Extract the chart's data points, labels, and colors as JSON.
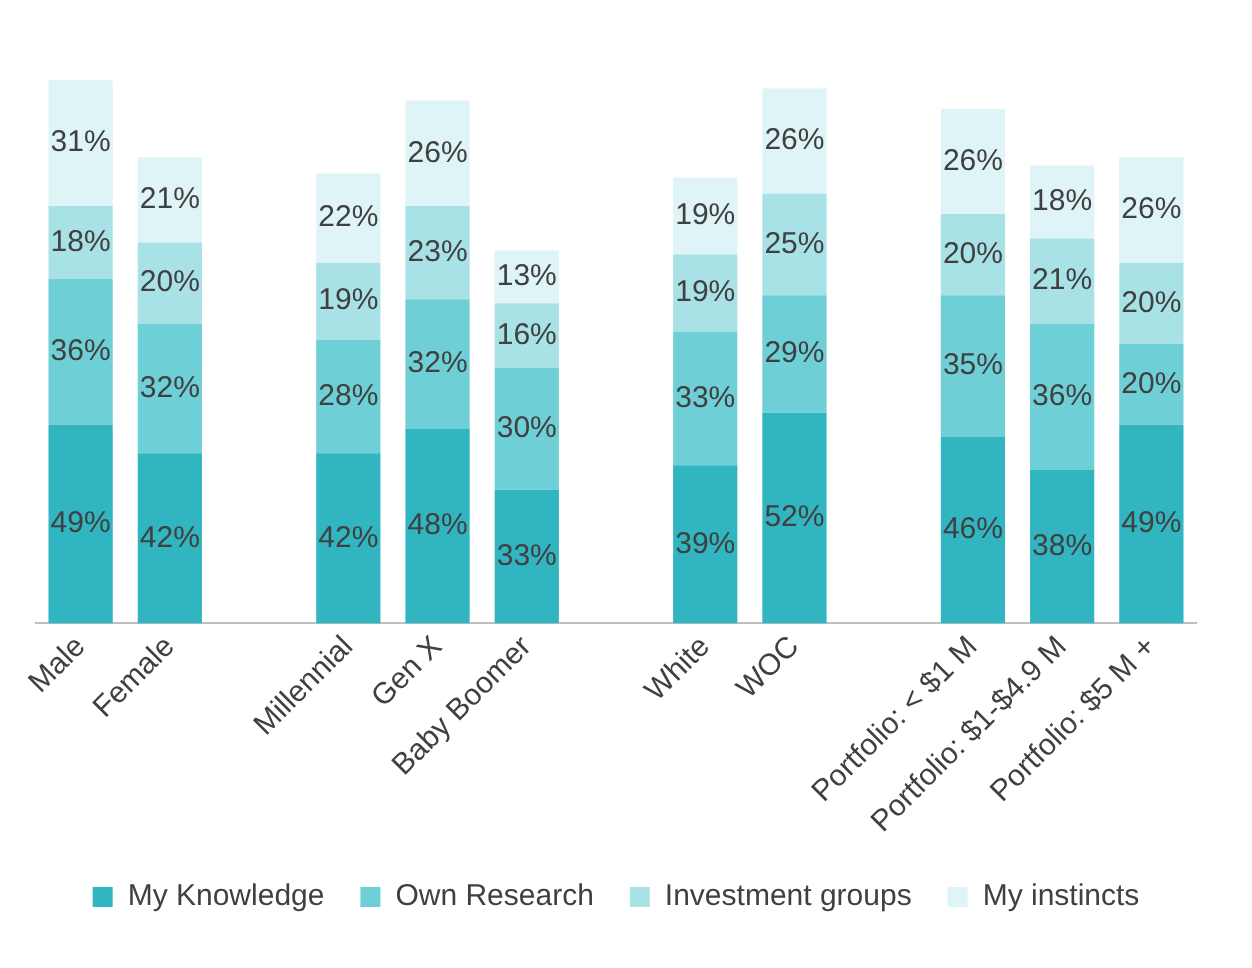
{
  "chart_data": {
    "type": "bar",
    "stacked": true,
    "legend": "bottom",
    "grid": false,
    "categories": [
      "Male",
      "Female",
      null,
      "Millennial",
      "Gen X",
      "Baby Boomer",
      null,
      "White",
      "WOC",
      null,
      "Portfolio: < $1 M",
      "Portfolio: $1-$4.9 M",
      "Portfolio: $5 M +"
    ],
    "series": [
      {
        "name": "My Knowledge",
        "color": "#30b5c1",
        "values": [
          49,
          42,
          null,
          42,
          48,
          33,
          null,
          39,
          52,
          null,
          46,
          38,
          49
        ],
        "value_labels": [
          "49%",
          "42%",
          null,
          "42%",
          "48%",
          "33%",
          null,
          "39%",
          "52%",
          null,
          "46%",
          "38%",
          "49%"
        ]
      },
      {
        "name": "Own Research",
        "color": "#6fcfd7",
        "values": [
          36,
          32,
          null,
          28,
          32,
          30,
          null,
          33,
          29,
          null,
          35,
          36,
          20
        ],
        "value_labels": [
          "36%",
          "32%",
          null,
          "28%",
          "32%",
          "30%",
          null,
          "33%",
          "29%",
          null,
          "35%",
          "36%",
          "20%"
        ]
      },
      {
        "name": "Investment groups",
        "color": "#a8e2e7",
        "values": [
          18,
          20,
          null,
          19,
          23,
          16,
          null,
          19,
          25,
          null,
          20,
          21,
          20
        ],
        "value_labels": [
          "18%",
          "20%",
          null,
          "19%",
          "23%",
          "16%",
          null,
          "19%",
          "25%",
          null,
          "20%",
          "21%",
          "20%"
        ]
      },
      {
        "name": "My instincts",
        "color": "#dff4f6",
        "values": [
          31,
          21,
          null,
          22,
          26,
          13,
          null,
          19,
          26,
          null,
          26,
          18,
          26
        ],
        "value_labels": [
          "31%",
          "21%",
          null,
          "22%",
          "26%",
          "13%",
          null,
          "19%",
          "26%",
          null,
          "26%",
          "18%",
          "26%"
        ]
      }
    ]
  }
}
